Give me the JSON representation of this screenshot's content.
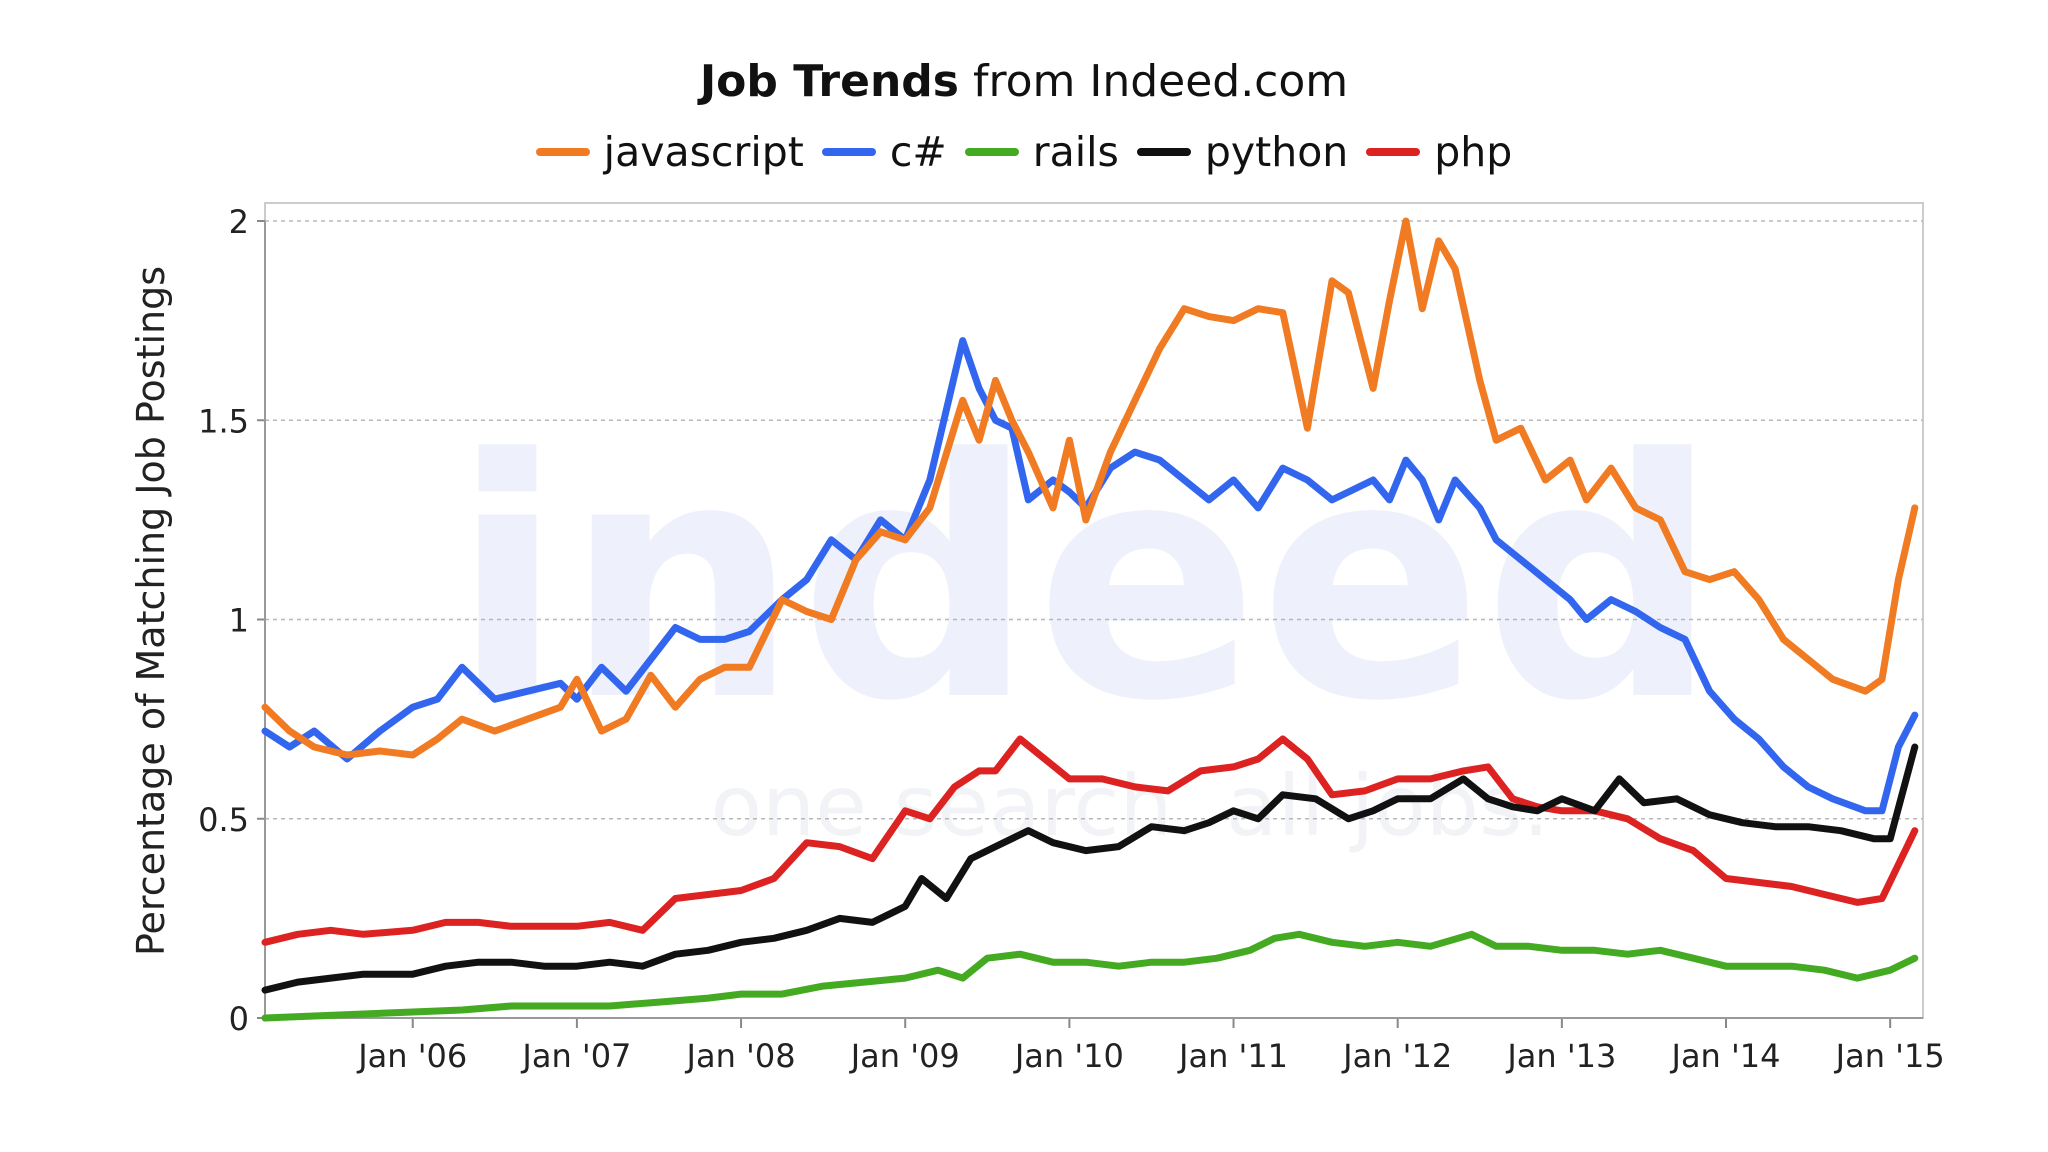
{
  "chart_data": {
    "type": "line",
    "title_bold": "Job Trends",
    "title_rest": " from Indeed.com",
    "ylabel": "Percentage of Matching Job Postings",
    "xlabel": "",
    "xlim": [
      2005.1,
      2015.2
    ],
    "ylim": [
      0,
      2
    ],
    "y_ticks": [
      0,
      0.5,
      1,
      1.5,
      2
    ],
    "y_tick_labels": [
      "0",
      "0.5",
      "1",
      "1.5",
      "2"
    ],
    "x_ticks": [
      2006,
      2007,
      2008,
      2009,
      2010,
      2011,
      2012,
      2013,
      2014,
      2015
    ],
    "x_tick_labels": [
      "Jan '06",
      "Jan '07",
      "Jan '08",
      "Jan '09",
      "Jan '10",
      "Jan '11",
      "Jan '12",
      "Jan '13",
      "Jan '14",
      "Jan '15"
    ],
    "grid": true,
    "legend_position": "top-center",
    "watermark": "indeed one search. all jobs.",
    "series": [
      {
        "name": "javascript",
        "color": "#f07b23",
        "x": [
          2005.1,
          2005.25,
          2005.4,
          2005.6,
          2005.8,
          2006.0,
          2006.15,
          2006.3,
          2006.5,
          2006.7,
          2006.9,
          2007.0,
          2007.15,
          2007.3,
          2007.45,
          2007.6,
          2007.75,
          2007.9,
          2008.05,
          2008.25,
          2008.4,
          2008.55,
          2008.7,
          2008.85,
          2009.0,
          2009.15,
          2009.35,
          2009.45,
          2009.55,
          2009.65,
          2009.75,
          2009.9,
          2010.0,
          2010.1,
          2010.25,
          2010.4,
          2010.55,
          2010.7,
          2010.85,
          2011.0,
          2011.15,
          2011.3,
          2011.45,
          2011.6,
          2011.7,
          2011.85,
          2011.95,
          2012.05,
          2012.15,
          2012.25,
          2012.35,
          2012.5,
          2012.6,
          2012.75,
          2012.9,
          2013.05,
          2013.15,
          2013.3,
          2013.45,
          2013.6,
          2013.75,
          2013.9,
          2014.05,
          2014.2,
          2014.35,
          2014.5,
          2014.65,
          2014.85,
          2014.95,
          2015.05,
          2015.15
        ],
        "values": [
          0.78,
          0.72,
          0.68,
          0.66,
          0.67,
          0.66,
          0.7,
          0.75,
          0.72,
          0.75,
          0.78,
          0.85,
          0.72,
          0.75,
          0.86,
          0.78,
          0.85,
          0.88,
          0.88,
          1.05,
          1.02,
          1.0,
          1.15,
          1.22,
          1.2,
          1.28,
          1.55,
          1.45,
          1.6,
          1.5,
          1.42,
          1.28,
          1.45,
          1.25,
          1.42,
          1.55,
          1.68,
          1.78,
          1.76,
          1.75,
          1.78,
          1.77,
          1.48,
          1.85,
          1.82,
          1.58,
          1.8,
          2.0,
          1.78,
          1.95,
          1.88,
          1.6,
          1.45,
          1.48,
          1.35,
          1.4,
          1.3,
          1.38,
          1.28,
          1.25,
          1.12,
          1.1,
          1.12,
          1.05,
          0.95,
          0.9,
          0.85,
          0.82,
          0.85,
          1.1,
          1.28
        ]
      },
      {
        "name": "c#",
        "color": "#3366ee",
        "x": [
          2005.1,
          2005.25,
          2005.4,
          2005.6,
          2005.8,
          2006.0,
          2006.15,
          2006.3,
          2006.5,
          2006.7,
          2006.9,
          2007.0,
          2007.15,
          2007.3,
          2007.45,
          2007.6,
          2007.75,
          2007.9,
          2008.05,
          2008.25,
          2008.4,
          2008.55,
          2008.7,
          2008.85,
          2009.0,
          2009.15,
          2009.35,
          2009.45,
          2009.55,
          2009.65,
          2009.75,
          2009.9,
          2010.0,
          2010.1,
          2010.25,
          2010.4,
          2010.55,
          2010.7,
          2010.85,
          2011.0,
          2011.15,
          2011.3,
          2011.45,
          2011.6,
          2011.7,
          2011.85,
          2011.95,
          2012.05,
          2012.15,
          2012.25,
          2012.35,
          2012.5,
          2012.6,
          2012.75,
          2012.9,
          2013.05,
          2013.15,
          2013.3,
          2013.45,
          2013.6,
          2013.75,
          2013.9,
          2014.05,
          2014.2,
          2014.35,
          2014.5,
          2014.65,
          2014.85,
          2014.95,
          2015.05,
          2015.15
        ],
        "values": [
          0.72,
          0.68,
          0.72,
          0.65,
          0.72,
          0.78,
          0.8,
          0.88,
          0.8,
          0.82,
          0.84,
          0.8,
          0.88,
          0.82,
          0.9,
          0.98,
          0.95,
          0.95,
          0.97,
          1.05,
          1.1,
          1.2,
          1.15,
          1.25,
          1.2,
          1.35,
          1.7,
          1.58,
          1.5,
          1.48,
          1.3,
          1.35,
          1.32,
          1.28,
          1.38,
          1.42,
          1.4,
          1.35,
          1.3,
          1.35,
          1.28,
          1.38,
          1.35,
          1.3,
          1.32,
          1.35,
          1.3,
          1.4,
          1.35,
          1.25,
          1.35,
          1.28,
          1.2,
          1.15,
          1.1,
          1.05,
          1.0,
          1.05,
          1.02,
          0.98,
          0.95,
          0.82,
          0.75,
          0.7,
          0.63,
          0.58,
          0.55,
          0.52,
          0.52,
          0.68,
          0.76
        ]
      },
      {
        "name": "rails",
        "color": "#44aa22",
        "x": [
          2005.1,
          2005.4,
          2005.7,
          2006.0,
          2006.3,
          2006.6,
          2006.9,
          2007.2,
          2007.5,
          2007.8,
          2008.0,
          2008.25,
          2008.5,
          2008.75,
          2009.0,
          2009.2,
          2009.35,
          2009.5,
          2009.7,
          2009.9,
          2010.1,
          2010.3,
          2010.5,
          2010.7,
          2010.9,
          2011.1,
          2011.25,
          2011.4,
          2011.6,
          2011.8,
          2012.0,
          2012.2,
          2012.45,
          2012.6,
          2012.8,
          2013.0,
          2013.2,
          2013.4,
          2013.6,
          2013.8,
          2014.0,
          2014.2,
          2014.4,
          2014.6,
          2014.8,
          2015.0,
          2015.15
        ],
        "values": [
          0.0,
          0.005,
          0.01,
          0.015,
          0.02,
          0.03,
          0.03,
          0.03,
          0.04,
          0.05,
          0.06,
          0.06,
          0.08,
          0.09,
          0.1,
          0.12,
          0.1,
          0.15,
          0.16,
          0.14,
          0.14,
          0.13,
          0.14,
          0.14,
          0.15,
          0.17,
          0.2,
          0.21,
          0.19,
          0.18,
          0.19,
          0.18,
          0.21,
          0.18,
          0.18,
          0.17,
          0.17,
          0.16,
          0.17,
          0.15,
          0.13,
          0.13,
          0.13,
          0.12,
          0.1,
          0.12,
          0.15
        ]
      },
      {
        "name": "python",
        "color": "#111111",
        "x": [
          2005.1,
          2005.3,
          2005.5,
          2005.7,
          2006.0,
          2006.2,
          2006.4,
          2006.6,
          2006.8,
          2007.0,
          2007.2,
          2007.4,
          2007.6,
          2007.8,
          2008.0,
          2008.2,
          2008.4,
          2008.6,
          2008.8,
          2009.0,
          2009.1,
          2009.25,
          2009.4,
          2009.55,
          2009.75,
          2009.9,
          2010.1,
          2010.3,
          2010.5,
          2010.7,
          2010.85,
          2011.0,
          2011.15,
          2011.3,
          2011.5,
          2011.7,
          2011.85,
          2012.0,
          2012.2,
          2012.4,
          2012.55,
          2012.7,
          2012.85,
          2013.0,
          2013.2,
          2013.35,
          2013.5,
          2013.7,
          2013.9,
          2014.1,
          2014.3,
          2014.5,
          2014.7,
          2014.9,
          2015.0,
          2015.15
        ],
        "values": [
          0.07,
          0.09,
          0.1,
          0.11,
          0.11,
          0.13,
          0.14,
          0.14,
          0.13,
          0.13,
          0.14,
          0.13,
          0.16,
          0.17,
          0.19,
          0.2,
          0.22,
          0.25,
          0.24,
          0.28,
          0.35,
          0.3,
          0.4,
          0.43,
          0.47,
          0.44,
          0.42,
          0.43,
          0.48,
          0.47,
          0.49,
          0.52,
          0.5,
          0.56,
          0.55,
          0.5,
          0.52,
          0.55,
          0.55,
          0.6,
          0.55,
          0.53,
          0.52,
          0.55,
          0.52,
          0.6,
          0.54,
          0.55,
          0.51,
          0.49,
          0.48,
          0.48,
          0.47,
          0.45,
          0.45,
          0.68
        ]
      },
      {
        "name": "php",
        "color": "#dd2222",
        "x": [
          2005.1,
          2005.3,
          2005.5,
          2005.7,
          2006.0,
          2006.2,
          2006.4,
          2006.6,
          2006.8,
          2007.0,
          2007.2,
          2007.4,
          2007.6,
          2007.8,
          2008.0,
          2008.2,
          2008.4,
          2008.6,
          2008.8,
          2009.0,
          2009.15,
          2009.3,
          2009.45,
          2009.55,
          2009.7,
          2009.85,
          2010.0,
          2010.2,
          2010.4,
          2010.6,
          2010.8,
          2011.0,
          2011.15,
          2011.3,
          2011.45,
          2011.6,
          2011.8,
          2012.0,
          2012.2,
          2012.4,
          2012.55,
          2012.7,
          2012.85,
          2013.0,
          2013.2,
          2013.4,
          2013.6,
          2013.8,
          2014.0,
          2014.2,
          2014.4,
          2014.6,
          2014.8,
          2014.95,
          2015.15
        ],
        "values": [
          0.19,
          0.21,
          0.22,
          0.21,
          0.22,
          0.24,
          0.24,
          0.23,
          0.23,
          0.23,
          0.24,
          0.22,
          0.3,
          0.31,
          0.32,
          0.35,
          0.44,
          0.43,
          0.4,
          0.52,
          0.5,
          0.58,
          0.62,
          0.62,
          0.7,
          0.65,
          0.6,
          0.6,
          0.58,
          0.57,
          0.62,
          0.63,
          0.65,
          0.7,
          0.65,
          0.56,
          0.57,
          0.6,
          0.6,
          0.62,
          0.63,
          0.55,
          0.53,
          0.52,
          0.52,
          0.5,
          0.45,
          0.42,
          0.35,
          0.34,
          0.33,
          0.31,
          0.29,
          0.3,
          0.47
        ]
      }
    ]
  }
}
